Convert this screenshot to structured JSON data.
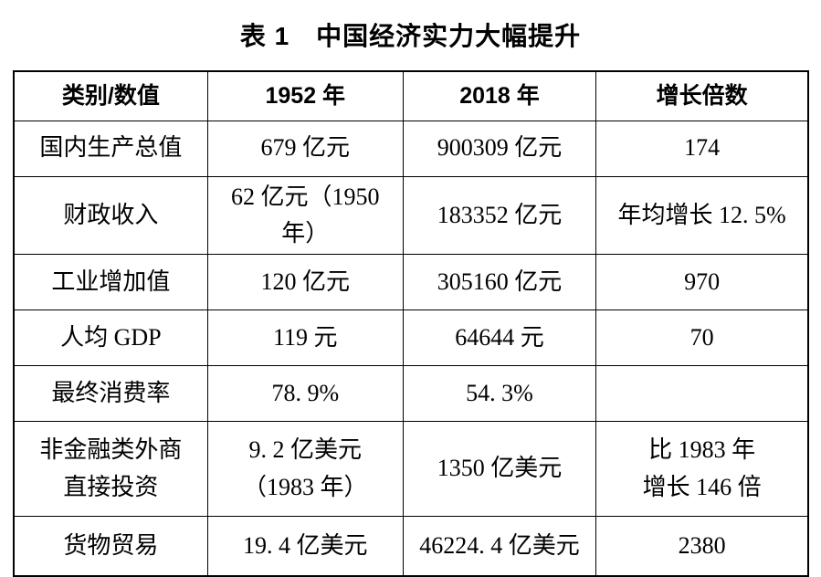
{
  "title": "表 1　中国经济实力大幅提升",
  "table": {
    "headers": [
      "类别/数值",
      "1952 年",
      "2018 年",
      "增长倍数"
    ],
    "rows": [
      {
        "category": "国内生产总值",
        "y1952": "679 亿元",
        "y2018": "900309 亿元",
        "growth": "174"
      },
      {
        "category": "财政收入",
        "y1952": "62 亿元（1950 年）",
        "y2018": "183352 亿元",
        "growth": "年均增长 12. 5%"
      },
      {
        "category": "工业增加值",
        "y1952": "120 亿元",
        "y2018": "305160 亿元",
        "growth": "970"
      },
      {
        "category": "人均 GDP",
        "y1952": "119 元",
        "y2018": "64644 元",
        "growth": "70"
      },
      {
        "category": "最终消费率",
        "y1952": "78. 9%",
        "y2018": "54. 3%",
        "growth": ""
      },
      {
        "category": "非金融类外商\n直接投资",
        "y1952": "9. 2 亿美元\n（1983 年）",
        "y2018": "1350 亿美元",
        "growth": "比 1983 年\n增长 146 倍"
      },
      {
        "category": "货物贸易",
        "y1952": "19. 4 亿美元",
        "y2018": "46224. 4 亿美元",
        "growth": "2380"
      }
    ]
  },
  "colors": {
    "text": "#000000",
    "border": "#000000",
    "background": "#ffffff"
  }
}
